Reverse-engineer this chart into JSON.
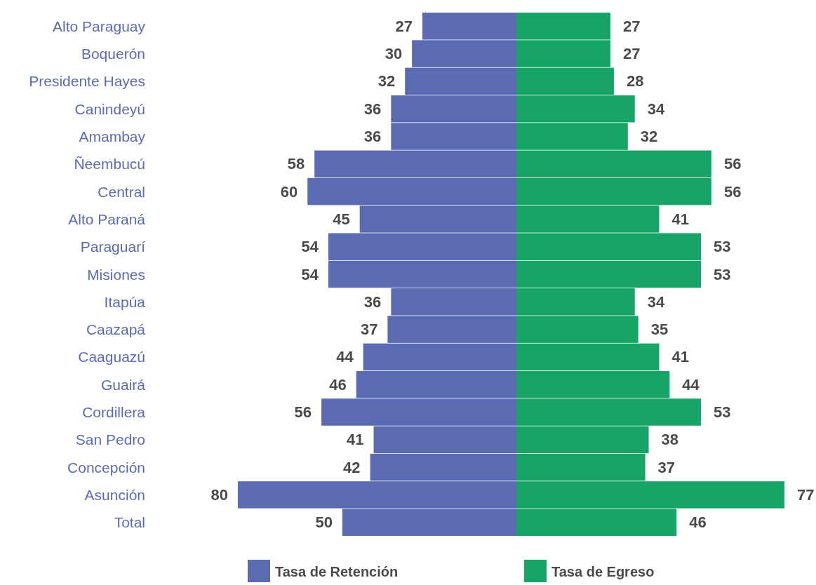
{
  "chart_data": [
    {
      "type": "bar",
      "orientation": "horizontal",
      "legend": "bottom",
      "data_labels": true,
      "tick_labels": "y",
      "categories": [
        "Alto Paraguay",
        "Boquerón",
        "Presidente Hayes",
        "Canindeyú",
        "Amambay",
        "Ñeembucú",
        "Central",
        "Alto Paraná",
        "Paraguarí",
        "Misiones",
        "Itapúa",
        "Caazapá",
        "Caaguazú",
        "Guairá",
        "Cordillera",
        "San Pedro",
        "Concepción",
        "Asunción",
        "Total"
      ],
      "series": [
        {
          "name": "Tasa de Retención",
          "color": "#5b6bb3",
          "values": [
            27,
            30,
            32,
            36,
            36,
            58,
            60,
            45,
            54,
            54,
            36,
            37,
            44,
            46,
            56,
            41,
            42,
            80,
            50
          ]
        }
      ]
    },
    {
      "type": "bar",
      "orientation": "horizontal",
      "legend": "bottom",
      "data_labels": true,
      "categories": [
        null,
        null,
        null,
        null,
        null,
        null,
        null,
        null,
        null,
        null,
        null,
        null,
        null,
        null,
        null,
        null,
        null,
        null,
        null
      ],
      "series": [
        {
          "name": "Tasa de Egreso",
          "color": "#16a566",
          "values": [
            27,
            27,
            28,
            34,
            32,
            56,
            56,
            41,
            53,
            53,
            34,
            35,
            41,
            44,
            53,
            38,
            37,
            77,
            46
          ]
        }
      ]
    }
  ]
}
